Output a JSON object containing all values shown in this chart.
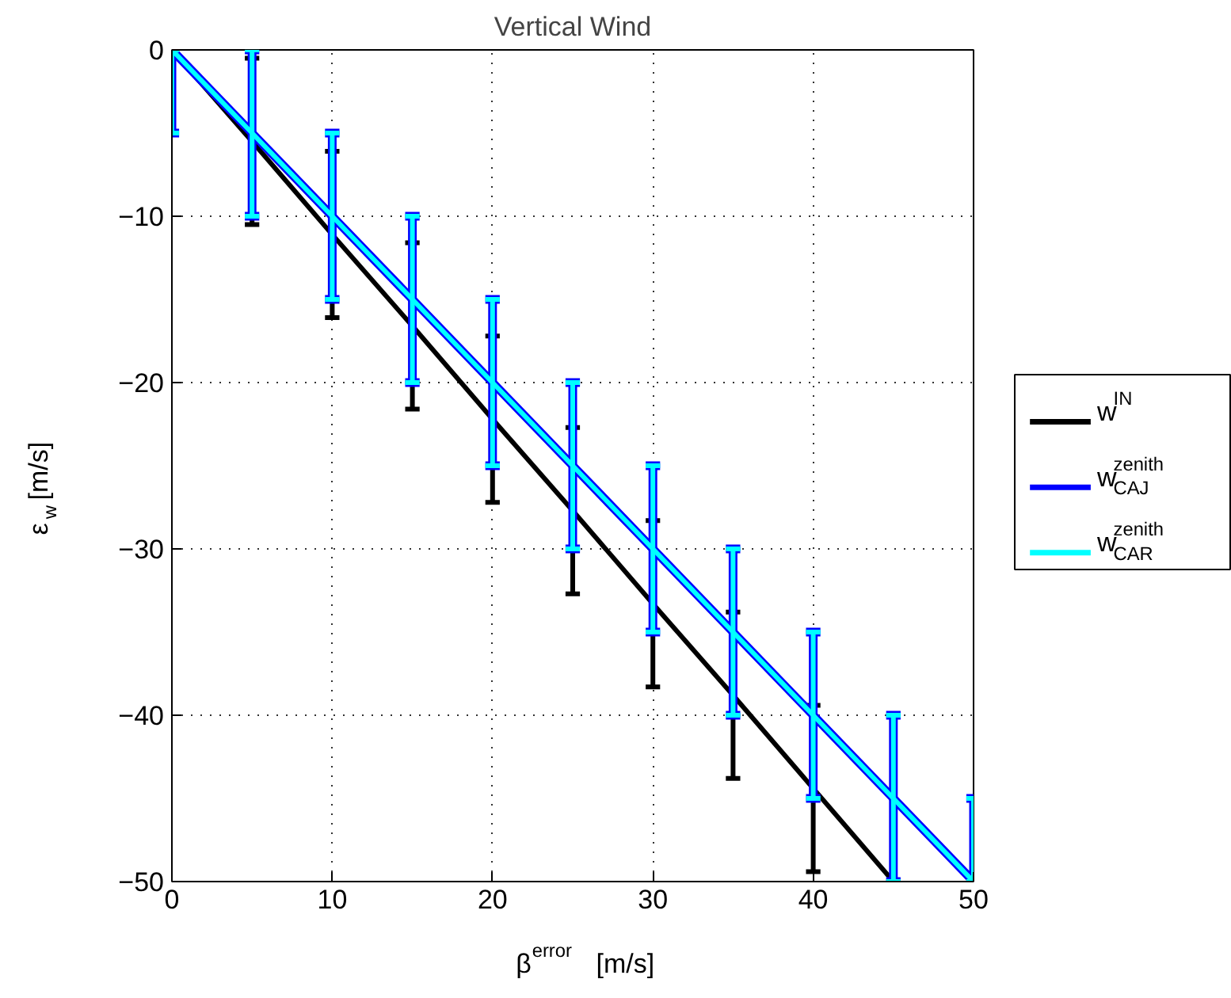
{
  "chart_data": {
    "type": "line",
    "title": "Vertical Wind",
    "xlabel": "β$^{error}$ [m/s]",
    "ylabel": "ε$_{w}$ [m/s]",
    "xlim": [
      0,
      50
    ],
    "ylim": [
      -50,
      0
    ],
    "xticks": [
      0,
      10,
      20,
      30,
      40,
      50
    ],
    "yticks": [
      -50,
      -40,
      -30,
      -20,
      -10,
      0
    ],
    "grid": true,
    "legend": "right",
    "series": [
      {
        "name": "w$^{IN}$",
        "color": "#000000",
        "x": [
          0,
          5,
          10,
          15,
          20,
          25,
          30,
          35,
          40,
          45
        ],
        "values": [
          0,
          -5.5,
          -11.1,
          -16.6,
          -22.2,
          -27.7,
          -33.3,
          -38.8,
          -44.4,
          -50
        ],
        "errors": [
          null,
          5,
          5,
          5,
          5,
          5,
          5,
          5,
          5,
          null
        ]
      },
      {
        "name": "w$^{zenith}$$_{CAJ}$",
        "color": "#0000ff",
        "x": [
          0,
          5,
          10,
          15,
          20,
          25,
          30,
          35,
          40,
          45,
          50
        ],
        "values": [
          0,
          -5,
          -10,
          -15,
          -20,
          -25,
          -30,
          -35,
          -40,
          -45,
          -50
        ],
        "errors": [
          [
            -5,
            0
          ],
          5,
          5,
          5,
          5,
          5,
          5,
          5,
          5,
          5,
          [
            -50,
            -45
          ]
        ]
      },
      {
        "name": "w$^{zenith}$$_{CAR}$",
        "color": "#00ffff",
        "x": [
          0,
          5,
          10,
          15,
          20,
          25,
          30,
          35,
          40,
          45,
          50
        ],
        "values": [
          0,
          -5,
          -10,
          -15,
          -20,
          -25,
          -30,
          -35,
          -40,
          -45,
          -50
        ],
        "errors": [
          [
            -5,
            0
          ],
          5,
          5,
          5,
          5,
          5,
          5,
          5,
          5,
          5,
          [
            -50,
            -45
          ]
        ]
      }
    ]
  }
}
